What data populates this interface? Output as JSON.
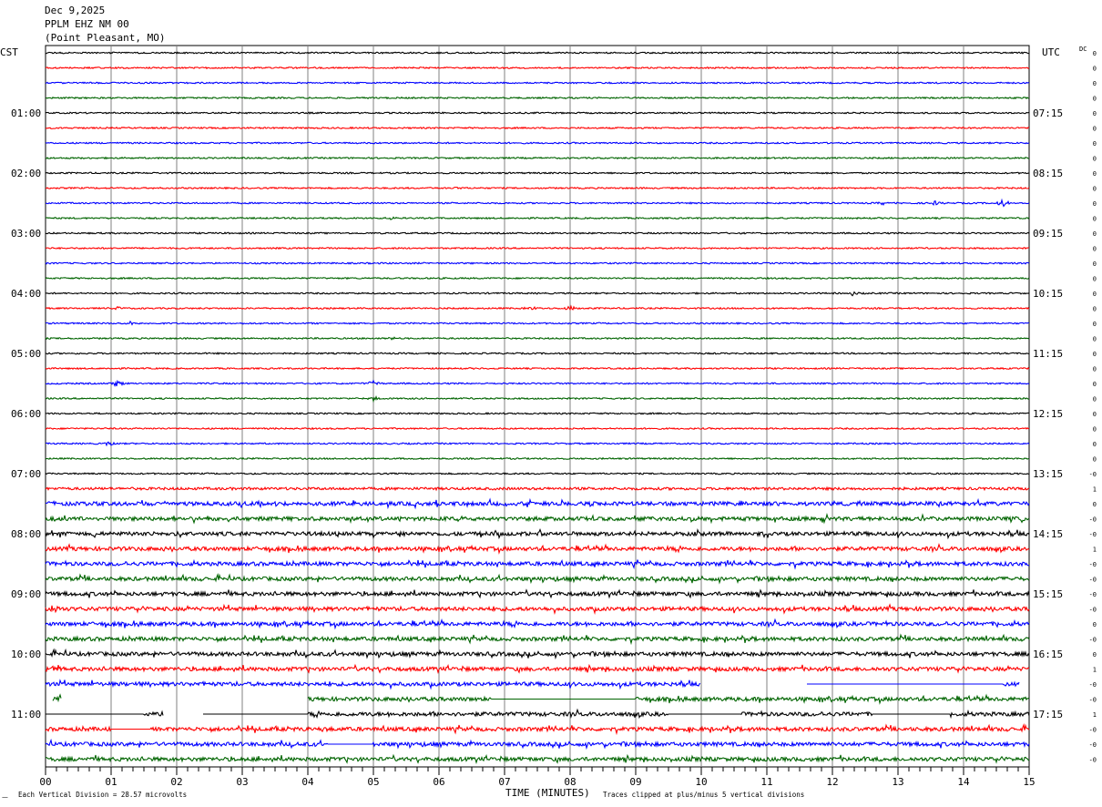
{
  "header": {
    "date": "Dec 9,2025",
    "station": "PPLM EHZ NM 00",
    "location": "(Point Pleasant, MO)"
  },
  "colors": {
    "trace_cycle": [
      "#000000",
      "#ff0000",
      "#0000ff",
      "#006400"
    ],
    "grid": "#808080",
    "background": "#ffffff"
  },
  "footer": {
    "marker": "ㅡ",
    "vertical_division_note": "Each Vertical Division =   28.57 microvolts",
    "clip_note": "Traces clipped at plus/minus 5 vertical divisions"
  },
  "chart_data": {
    "type": "helicorder",
    "title": "",
    "xlabel": "TIME (MINUTES)",
    "left_axis_label": "CST",
    "right_axis_label": "UTC",
    "dc_label": "DC",
    "xlim": [
      0,
      15
    ],
    "x_ticks": [
      "00",
      "01",
      "02",
      "03",
      "04",
      "05",
      "06",
      "07",
      "08",
      "09",
      "10",
      "11",
      "12",
      "13",
      "14",
      "15"
    ],
    "minutes_per_line": 15,
    "line_count": 48,
    "hour_labels_cst": [
      "01:00",
      "02:00",
      "03:00",
      "04:00",
      "05:00",
      "06:00",
      "07:00",
      "08:00",
      "09:00",
      "10:00",
      "11:00"
    ],
    "hour_labels_utc": [
      "07:15",
      "08:15",
      "09:15",
      "10:15",
      "11:15",
      "12:15",
      "13:15",
      "14:15",
      "15:15",
      "16:15",
      "17:15"
    ],
    "dc_offsets": [
      "0",
      "0",
      "0",
      "0",
      "0",
      "0",
      "0",
      "0",
      "0",
      "0",
      "0",
      "0",
      "0",
      "0",
      "0",
      "0",
      "0",
      "0",
      "0",
      "0",
      "0",
      "0",
      "0",
      "0",
      "0",
      "0",
      "0",
      "0",
      "-0",
      "1",
      "0",
      "-0",
      "-0",
      "1",
      "-0",
      "-0",
      "-0",
      "-0",
      "0",
      "-0",
      "0",
      "1",
      "-0",
      "-0",
      "1",
      "-0",
      "-0",
      "-0"
    ],
    "activity_level": [
      1,
      1,
      1,
      1,
      1,
      1,
      1,
      1,
      1,
      1,
      1,
      1,
      1,
      1,
      1,
      1,
      1,
      1,
      1,
      1,
      1,
      1,
      1,
      1,
      1,
      1,
      1,
      1,
      1,
      2,
      3,
      3,
      3,
      3,
      3,
      3,
      3,
      3,
      3,
      3,
      3,
      3,
      3,
      3,
      3,
      3,
      3,
      3
    ],
    "events": [
      {
        "line": 9,
        "minute": 6.3,
        "amplitude": 1.5
      },
      {
        "line": 10,
        "minute": 12.8,
        "amplitude": 2
      },
      {
        "line": 10,
        "minute": 13.6,
        "amplitude": 2.5
      },
      {
        "line": 10,
        "minute": 14.6,
        "amplitude": 4
      },
      {
        "line": 11,
        "minute": 5.3,
        "amplitude": 2
      },
      {
        "line": 16,
        "minute": 12.3,
        "amplitude": 2
      },
      {
        "line": 17,
        "minute": 1.1,
        "amplitude": 2
      },
      {
        "line": 17,
        "minute": 7.4,
        "amplitude": 2
      },
      {
        "line": 17,
        "minute": 8.0,
        "amplitude": 3
      },
      {
        "line": 18,
        "minute": 1.3,
        "amplitude": 2
      },
      {
        "line": 19,
        "minute": 5.3,
        "amplitude": 2
      },
      {
        "line": 22,
        "minute": 1.1,
        "amplitude": 4
      },
      {
        "line": 22,
        "minute": 5.0,
        "amplitude": 3
      },
      {
        "line": 23,
        "minute": 5.0,
        "amplitude": 2
      },
      {
        "line": 26,
        "minute": 1.0,
        "amplitude": 3
      },
      {
        "line": 32,
        "minute": 0.1,
        "amplitude": 3
      },
      {
        "line": 32,
        "minute": 11.0,
        "amplitude": 3
      },
      {
        "line": 37,
        "minute": 0.1,
        "amplitude": 3
      },
      {
        "line": 41,
        "minute": 0.1,
        "amplitude": 3
      },
      {
        "line": 45,
        "minute": 4.2,
        "amplitude": 3
      }
    ],
    "gaps": [
      {
        "line": 42,
        "from": 10.0,
        "to": 11.6
      },
      {
        "line": 42,
        "from": 14.85,
        "to": 15.0
      },
      {
        "line": 43,
        "from": 0.0,
        "to": 0.1
      },
      {
        "line": 43,
        "from": 0.25,
        "to": 4.0
      },
      {
        "line": 44,
        "from": 1.8,
        "to": 2.4
      }
    ],
    "flat_segments": [
      {
        "line": 42,
        "from": 11.6,
        "to": 14.6
      },
      {
        "line": 43,
        "from": 6.8,
        "to": 9.0
      },
      {
        "line": 44,
        "from": 0.0,
        "to": 1.5
      },
      {
        "line": 44,
        "from": 2.4,
        "to": 4.0
      },
      {
        "line": 44,
        "from": 9.5,
        "to": 10.6
      },
      {
        "line": 44,
        "from": 12.6,
        "to": 13.8
      },
      {
        "line": 45,
        "from": 1.0,
        "to": 1.6
      },
      {
        "line": 46,
        "from": 4.3,
        "to": 5.0
      }
    ]
  }
}
